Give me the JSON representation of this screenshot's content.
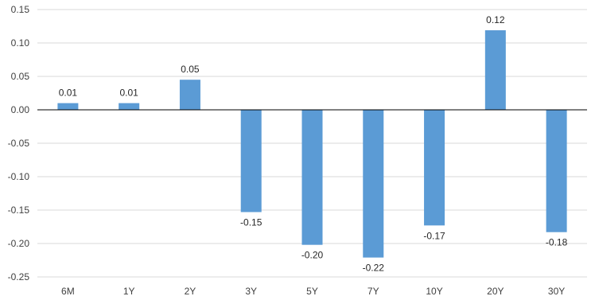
{
  "chart_data": {
    "type": "bar",
    "title": "",
    "xlabel": "",
    "ylabel": "",
    "categories": [
      "6M",
      "1Y",
      "2Y",
      "3Y",
      "5Y",
      "7Y",
      "10Y",
      "20Y",
      "30Y"
    ],
    "values": [
      0.01,
      0.01,
      0.045,
      -0.153,
      -0.202,
      -0.221,
      -0.173,
      0.119,
      -0.183
    ],
    "data_labels": [
      "0.01",
      "0.01",
      "0.05",
      "-0.15",
      "-0.20",
      "-0.22",
      "-0.17",
      "0.12",
      "-0.18"
    ],
    "ylim": [
      -0.25,
      0.15
    ],
    "yticks": [
      0.15,
      0.1,
      0.05,
      0.0,
      -0.05,
      -0.1,
      -0.15,
      -0.2,
      -0.25
    ],
    "ytick_labels": [
      "0.15",
      "0.10",
      "0.05",
      "0.00",
      "-0.05",
      "-0.10",
      "-0.15",
      "-0.20",
      "-0.25"
    ],
    "grid": true,
    "legend": "none",
    "bar_color": "#5b9bd5"
  }
}
